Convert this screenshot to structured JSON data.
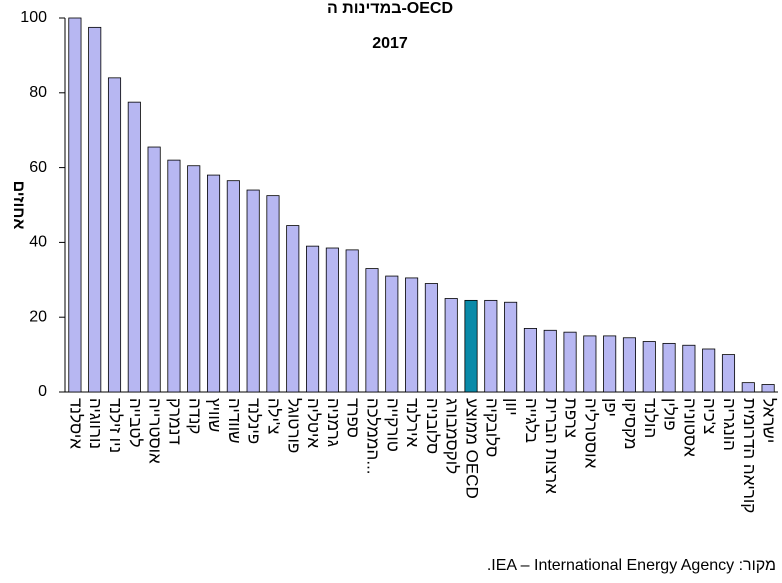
{
  "chart_data": {
    "type": "bar",
    "title": "במדינות ה-OECD",
    "subtitle": "2017",
    "y_label": "אחוזים",
    "source": "מקור: IEA – International Energy Agency.",
    "categories": [
      "איסלנד",
      "נורווגיה",
      "ניו זילנד",
      "לטבייה",
      "אוסטרייה",
      "דנמרק",
      "קנדה",
      "שוויץ",
      "שוודיה",
      "פינלנד",
      "צ'ילה",
      "פורטוגל",
      "איטליה",
      "גרמניה",
      "ספרד",
      "הממלכה...",
      "טורקייה",
      "אירלנד",
      "סלובניה",
      "לוקסמבורג",
      "ממוצע OECD",
      "סלובקיה",
      "יוון",
      "בלגייה",
      "ארצות הברית",
      "צרפת",
      "אוסטרליה",
      "יפן",
      "מקסיקו",
      "הולנד",
      "פולין",
      "אסטוניה",
      "צ'כיה",
      "הונגריה",
      "קוריאה הדרומית",
      "ישראל"
    ],
    "values": [
      100,
      97.5,
      84,
      77.5,
      65.5,
      62,
      60.5,
      58,
      56.5,
      54,
      52.5,
      44.5,
      39,
      38.5,
      38,
      33,
      31,
      30.5,
      29,
      25,
      24.5,
      24.5,
      24,
      17,
      16.5,
      16,
      15,
      15,
      14.5,
      13.5,
      13,
      12.5,
      11.5,
      10,
      2.5,
      2
    ],
    "colors": [
      "#b7b7f2",
      "#b7b7f2",
      "#b7b7f2",
      "#b7b7f2",
      "#b7b7f2",
      "#b7b7f2",
      "#b7b7f2",
      "#b7b7f2",
      "#b7b7f2",
      "#b7b7f2",
      "#b7b7f2",
      "#b7b7f2",
      "#b7b7f2",
      "#b7b7f2",
      "#b7b7f2",
      "#b7b7f2",
      "#b7b7f2",
      "#b7b7f2",
      "#b7b7f2",
      "#b7b7f2",
      "#0a8aa8",
      "#b7b7f2",
      "#b7b7f2",
      "#b7b7f2",
      "#b7b7f2",
      "#b7b7f2",
      "#b7b7f2",
      "#b7b7f2",
      "#b7b7f2",
      "#b7b7f2",
      "#b7b7f2",
      "#b7b7f2",
      "#b7b7f2",
      "#b7b7f2",
      "#b7b7f2",
      "#b7b7f2"
    ],
    "ylim": [
      0,
      100
    ],
    "yticks": [
      0,
      20,
      40,
      60,
      80,
      100
    ],
    "grid": false
  }
}
